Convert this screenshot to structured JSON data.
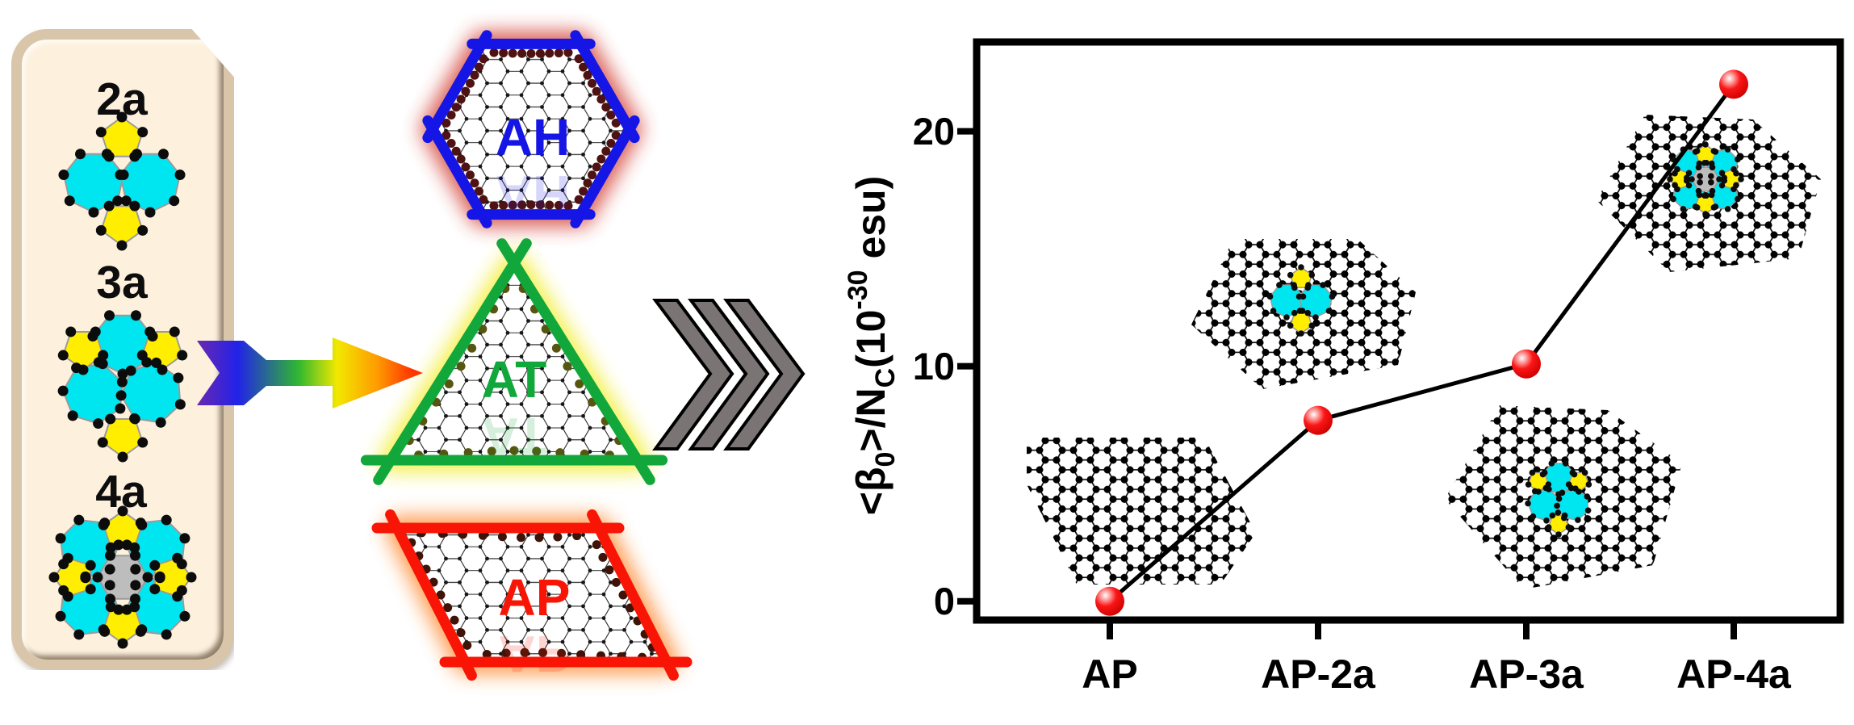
{
  "panel": {
    "items": [
      {
        "label": "2a"
      },
      {
        "label": "3a"
      },
      {
        "label": "4a"
      }
    ]
  },
  "shapes": [
    {
      "label": "AH",
      "color": "#1515e6"
    },
    {
      "label": "AT",
      "color": "#11a73b"
    },
    {
      "label": "AP",
      "color": "#f91505"
    }
  ],
  "colors": {
    "panel_fill": "#fdf1de",
    "panel_border": "#d9c6aa",
    "ring7_cyan": "#00e6f0",
    "ring5_yellow": "#ffee00",
    "ring6_gray": "#bdbdbd",
    "atom_black": "#0c0c0c",
    "glow_red": "#d03028",
    "glow_yellow": "#f2ec22",
    "glow_orange": "#ff8326",
    "chevron_gray": "#7b7474",
    "marker_red": "#ee1010",
    "line_black": "#000000"
  },
  "chart_data": {
    "type": "scatter",
    "categories": [
      "AP",
      "AP-2a",
      "AP-3a",
      "AP-4a"
    ],
    "values": [
      0.0,
      7.7,
      10.1,
      22.0
    ],
    "yticks": [
      0,
      10,
      20
    ],
    "ytick_labels": [
      "0",
      "10",
      "20"
    ],
    "ylim": [
      -0.8,
      23.8
    ],
    "ylabel_text": "<β0>/NC(10-30 esu)",
    "ylabel_segments": [
      {
        "t": "<β"
      },
      {
        "t": "0",
        "style": "sub"
      },
      {
        "t": ">/N"
      },
      {
        "t": "C",
        "style": "sub"
      },
      {
        "t": "(10"
      },
      {
        "t": "-30",
        "style": "sup"
      },
      {
        "t": " esu)"
      }
    ],
    "xlabel": "",
    "title": "",
    "legend": null,
    "grid": false,
    "marker_color": "#ee1010",
    "line_color": "#000000"
  }
}
